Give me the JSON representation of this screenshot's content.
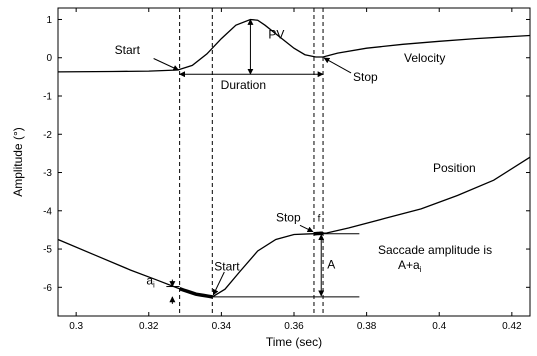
{
  "chart_data": {
    "type": "line",
    "xlabel": "Time (sec)",
    "ylabel": "Amplitude (°)",
    "xlim": [
      0.295,
      0.425
    ],
    "ylim": [
      -6.75,
      1.3
    ],
    "xticks": [
      0.3,
      0.32,
      0.34,
      0.36,
      0.38,
      0.4,
      0.42
    ],
    "xtick_labels": [
      "0.3",
      "0.32",
      "0.34",
      "0.36",
      "0.38",
      "0.4",
      "0.42"
    ],
    "yticks": [
      1,
      0,
      -1,
      -2,
      -3,
      -4,
      -5,
      -6
    ],
    "ytick_labels": [
      "1",
      "0",
      "-1",
      "-2",
      "-3",
      "-4",
      "-5",
      "-6"
    ],
    "grid": false,
    "series": [
      {
        "name": "Velocity",
        "x": [
          0.295,
          0.31,
          0.32,
          0.328,
          0.332,
          0.336,
          0.34,
          0.344,
          0.348,
          0.35,
          0.352,
          0.356,
          0.36,
          0.363,
          0.366,
          0.368,
          0.372,
          0.38,
          0.39,
          0.4,
          0.41,
          0.425
        ],
        "y": [
          -0.37,
          -0.36,
          -0.35,
          -0.32,
          -0.2,
          0.1,
          0.5,
          0.85,
          1.0,
          0.98,
          0.85,
          0.55,
          0.25,
          0.08,
          0.02,
          0.02,
          0.12,
          0.25,
          0.35,
          0.43,
          0.5,
          0.58
        ]
      },
      {
        "name": "Position",
        "x": [
          0.295,
          0.305,
          0.315,
          0.322,
          0.328,
          0.333,
          0.3375,
          0.341,
          0.345,
          0.35,
          0.355,
          0.36,
          0.3655,
          0.369,
          0.375,
          0.385,
          0.395,
          0.405,
          0.415,
          0.425
        ],
        "y": [
          -4.75,
          -5.15,
          -5.55,
          -5.8,
          -6.02,
          -6.18,
          -6.25,
          -6.05,
          -5.6,
          -5.05,
          -4.75,
          -4.62,
          -4.6,
          -4.58,
          -4.45,
          -4.2,
          -3.95,
          -3.6,
          -3.2,
          -2.6
        ]
      }
    ],
    "markers": {
      "vlines": [
        0.3285,
        0.3375,
        0.3655,
        0.368
      ],
      "velocity_start": [
        0.3285,
        -0.35
      ],
      "velocity_peak": [
        0.348,
        1.0
      ],
      "velocity_stop": [
        0.368,
        0.02
      ],
      "duration_y": -0.43,
      "position_start_range": [
        0.3285,
        0.3375
      ],
      "position_stop_range": [
        0.3655,
        0.368
      ],
      "stop_level": -4.6,
      "start_level": -6.25,
      "ai_top": -5.98,
      "amplitude_line_x": 0.3675,
      "baseline_xmax": 0.378
    },
    "annotations": {
      "start_top": "Start",
      "pv": "PV",
      "stop_top": "Stop",
      "velocity_label": "Velocity",
      "duration": "Duration",
      "position_label": "Position",
      "stop_bottom": "Stop",
      "f": "f",
      "start_bottom": "Start",
      "a_label": "A",
      "amp_line1": "Saccade amplitude is",
      "amp_line2": "A+a",
      "amp_sub": "i",
      "ai": "a",
      "ai_sub": "i"
    }
  }
}
